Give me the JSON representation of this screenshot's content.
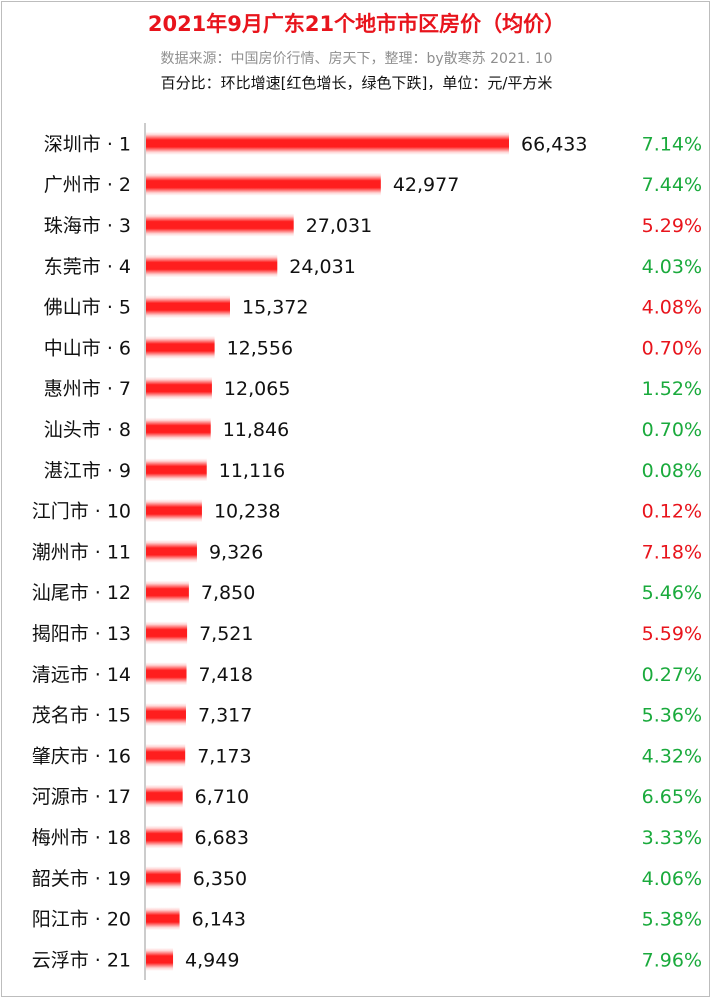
{
  "title": "2021年9月广东21个地市市区房价（均价）",
  "subtitle": "数据来源：中国房价行情、房天下，整理：by散寒苏  2021. 10",
  "note": "百分比：环比增速[红色增长，绿色下跌]，单位：元/平方米",
  "colors": {
    "bar": "#ff1e1e",
    "up": "#e8141c",
    "down": "#1aaa3c",
    "axis": "#9a9a9a"
  },
  "chart_data": {
    "type": "bar",
    "orientation": "horizontal",
    "categories": [
      "深圳市 · 1",
      "广州市 · 2",
      "珠海市 · 3",
      "东莞市 · 4",
      "佛山市 · 5",
      "中山市 · 6",
      "惠州市 · 7",
      "汕头市 · 8",
      "湛江市 · 9",
      "江门市 · 10",
      "潮州市 · 11",
      "汕尾市 · 12",
      "揭阳市 · 13",
      "清远市 · 14",
      "茂名市 · 15",
      "肇庆市 · 16",
      "河源市 · 17",
      "梅州市 · 18",
      "韶关市 · 19",
      "阳江市 · 20",
      "云浮市 · 21"
    ],
    "values": [
      66433,
      42977,
      27031,
      24031,
      15372,
      12556,
      12065,
      11846,
      11116,
      10238,
      9326,
      7850,
      7521,
      7418,
      7317,
      7173,
      6710,
      6683,
      6350,
      6143,
      4949
    ],
    "value_labels": [
      "66,433",
      "42,977",
      "27,031",
      "24,031",
      "15,372",
      "12,556",
      "12,065",
      "11,846",
      "11,116",
      "10,238",
      "9,326",
      "7,850",
      "7,521",
      "7,418",
      "7,317",
      "7,173",
      "6,710",
      "6,683",
      "6,350",
      "6,143",
      "4,949"
    ],
    "change_labels": [
      "7.14%",
      "7.44%",
      "5.29%",
      "4.03%",
      "4.08%",
      "0.70%",
      "1.52%",
      "0.70%",
      "0.08%",
      "0.12%",
      "7.18%",
      "5.46%",
      "5.59%",
      "0.27%",
      "5.36%",
      "4.32%",
      "6.65%",
      "3.33%",
      "4.06%",
      "5.38%",
      "7.96%"
    ],
    "change_direction": [
      "down",
      "down",
      "up",
      "down",
      "up",
      "up",
      "down",
      "down",
      "down",
      "up",
      "up",
      "down",
      "up",
      "down",
      "down",
      "down",
      "down",
      "down",
      "down",
      "down",
      "down"
    ],
    "xlim": [
      0,
      70000
    ],
    "grid": false
  }
}
